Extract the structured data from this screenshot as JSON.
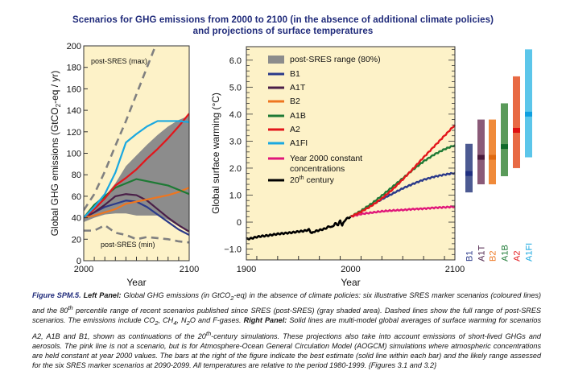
{
  "title_line1": "Scenarios for GHG emissions from 2000 to 2100 (in the absence of additional climate policies)",
  "title_line2": "and projections of surface temperatures",
  "colors": {
    "panel_bg": "#fdf2c8",
    "range_gray": "#8c8c8c",
    "dashed_gray": "#808080",
    "B1": "#2b3a8a",
    "A1T": "#4a1f48",
    "B2": "#ee7620",
    "A1B": "#1e7a35",
    "A2": "#e3161b",
    "A1FI": "#1aa8e0",
    "constant": "#e0177a",
    "century20": "#000000",
    "title": "#1f2a7a"
  },
  "chart_data": [
    {
      "type": "line",
      "title": "Global GHG emissions",
      "xlabel": "Year",
      "ylabel": "Global GHG emissions (GtCO2-eq / yr)",
      "xlim": [
        2000,
        2100
      ],
      "ylim": [
        0,
        200
      ],
      "x_ticks": [
        2000,
        2100
      ],
      "y_ticks": [
        0,
        20,
        40,
        60,
        80,
        100,
        120,
        140,
        160,
        180,
        200
      ],
      "x": [
        2000,
        2010,
        2020,
        2030,
        2040,
        2050,
        2060,
        2070,
        2080,
        2090,
        2100
      ],
      "range_80pct": {
        "name": "post-SRES range (80%)",
        "upper": [
          40,
          50,
          60,
          72,
          88,
          98,
          108,
          117,
          125,
          131,
          135
        ],
        "lower": [
          36,
          40,
          43,
          44,
          44,
          42,
          42,
          42,
          38,
          32,
          26
        ]
      },
      "series": [
        {
          "name": "B1",
          "values": [
            40,
            45,
            50,
            53,
            56,
            55,
            50,
            43,
            36,
            29,
            24
          ]
        },
        {
          "name": "A1T",
          "values": [
            40,
            45,
            52,
            60,
            62,
            61,
            56,
            48,
            40,
            33,
            27
          ]
        },
        {
          "name": "B2",
          "values": [
            40,
            42,
            45,
            48,
            53,
            55,
            57,
            59,
            61,
            64,
            68
          ]
        },
        {
          "name": "A1B",
          "values": [
            40,
            52,
            60,
            68,
            72,
            76,
            74,
            72,
            70,
            66,
            62
          ]
        },
        {
          "name": "A2",
          "values": [
            40,
            48,
            58,
            70,
            77,
            85,
            95,
            104,
            114,
            125,
            137
          ]
        },
        {
          "name": "A1FI",
          "values": [
            40,
            50,
            62,
            82,
            110,
            118,
            125,
            130,
            130,
            130,
            129
          ]
        }
      ],
      "dashed": [
        {
          "name": "post-SRES (max)",
          "x": [
            2000,
            2010,
            2020,
            2030,
            2040,
            2050,
            2060,
            2068
          ],
          "values": [
            47,
            62,
            83,
            107,
            130,
            155,
            180,
            200
          ]
        },
        {
          "name": "post-SRES (min)",
          "x": [
            2000,
            2010,
            2020,
            2030,
            2040,
            2050,
            2060,
            2070,
            2080,
            2090,
            2100
          ],
          "values": [
            28,
            28,
            33,
            26,
            24,
            20,
            22,
            21,
            20,
            18,
            17
          ]
        }
      ],
      "annotations": [
        "post-SRES (max)",
        "post-SRES (min)"
      ]
    },
    {
      "type": "line",
      "title": "Global surface warming",
      "xlabel": "Year",
      "ylabel": "Global surface warming (°C)",
      "xlim": [
        1900,
        2100
      ],
      "ylim": [
        -1.4,
        6.5
      ],
      "x_ticks": [
        1900,
        2000,
        2100
      ],
      "y_ticks": [
        -1.0,
        0,
        1.0,
        2.0,
        3.0,
        4.0,
        5.0,
        6.0
      ],
      "y_tick_labels": [
        "−1.0",
        "0",
        "1.0",
        "2.0",
        "3.0",
        "4.0",
        "5.0",
        "6.0"
      ],
      "series": [
        {
          "name": "20th century",
          "x": [
            1900,
            1905,
            1910,
            1915,
            1920,
            1925,
            1930,
            1935,
            1940,
            1945,
            1950,
            1955,
            1960,
            1963,
            1965,
            1970,
            1975,
            1980,
            1982,
            1985,
            1988,
            1990,
            1992,
            1995,
            2000
          ],
          "values": [
            -0.63,
            -0.6,
            -0.55,
            -0.52,
            -0.5,
            -0.47,
            -0.44,
            -0.42,
            -0.4,
            -0.38,
            -0.35,
            -0.33,
            -0.28,
            -0.42,
            -0.35,
            -0.3,
            -0.25,
            -0.15,
            -0.2,
            -0.05,
            -0.1,
            0.05,
            -0.12,
            0.1,
            0.2
          ]
        },
        {
          "name": "B1",
          "x": [
            2000,
            2010,
            2020,
            2030,
            2040,
            2050,
            2060,
            2070,
            2080,
            2090,
            2100
          ],
          "values": [
            0.2,
            0.4,
            0.62,
            0.85,
            1.05,
            1.25,
            1.42,
            1.57,
            1.68,
            1.76,
            1.82
          ]
        },
        {
          "name": "A1B",
          "x": [
            2000,
            2010,
            2020,
            2030,
            2040,
            2050,
            2060,
            2070,
            2080,
            2090,
            2100
          ],
          "values": [
            0.2,
            0.42,
            0.68,
            0.98,
            1.3,
            1.62,
            1.95,
            2.25,
            2.5,
            2.7,
            2.85
          ]
        },
        {
          "name": "A2",
          "x": [
            2000,
            2010,
            2020,
            2030,
            2040,
            2050,
            2060,
            2070,
            2080,
            2090,
            2100
          ],
          "values": [
            0.2,
            0.38,
            0.6,
            0.88,
            1.2,
            1.58,
            1.98,
            2.4,
            2.8,
            3.2,
            3.6
          ]
        },
        {
          "name": "Year 2000 constant concentrations",
          "x": [
            2000,
            2010,
            2020,
            2030,
            2040,
            2050,
            2060,
            2070,
            2080,
            2090,
            2100
          ],
          "values": [
            0.2,
            0.3,
            0.35,
            0.4,
            0.43,
            0.45,
            0.48,
            0.5,
            0.53,
            0.55,
            0.57
          ]
        }
      ],
      "legend": [
        {
          "label": "post-SRES range (80%)",
          "key": "range_gray",
          "kind": "box"
        },
        {
          "label": "B1",
          "key": "B1"
        },
        {
          "label": "A1T",
          "key": "A1T"
        },
        {
          "label": "B2",
          "key": "B2"
        },
        {
          "label": "A1B",
          "key": "A1B"
        },
        {
          "label": "A2",
          "key": "A2"
        },
        {
          "label": "A1FI",
          "key": "A1FI"
        },
        {
          "label": "Year 2000 constant",
          "label2": "concentrations",
          "key": "constant"
        },
        {
          "label": "20",
          "sup": "th",
          "label_rest": " century",
          "key": "century20"
        }
      ],
      "legend_position": "top-left",
      "bars_2090_2099": [
        {
          "name": "B1",
          "best": 1.8,
          "low": 1.1,
          "high": 2.9
        },
        {
          "name": "A1T",
          "best": 2.4,
          "low": 1.4,
          "high": 3.8
        },
        {
          "name": "B2",
          "best": 2.4,
          "low": 1.4,
          "high": 3.8
        },
        {
          "name": "A1B",
          "best": 2.8,
          "low": 1.7,
          "high": 4.4
        },
        {
          "name": "A2",
          "best": 3.4,
          "low": 2.0,
          "high": 5.4
        },
        {
          "name": "A1FI",
          "best": 4.0,
          "low": 2.4,
          "high": 6.4
        }
      ]
    }
  ],
  "caption": {
    "fig": "Figure SPM.5.",
    "left_label": "Left Panel:",
    "t1": " Global GHG emissions (in GtCO",
    "t1_sub": "2",
    "t2": "-eq) in the absence of climate policies: six illustrative SRES marker scenarios (coloured lines) and the 80",
    "t2_sup": "th",
    "t3": " percentile range of recent scenarios published since SRES (post-SRES) (gray shaded area). Dashed lines show the full range of post-SRES scenarios. The emissions include CO",
    "t3_sub": "2",
    "t4": ", CH",
    "t4_sub": "4",
    "t5": ", N",
    "t5_sub": "2",
    "t6": "O and F-gases. ",
    "right_label": "Right Panel:",
    "t7": " Solid lines are multi-model global averages of surface warming for scenarios A2, A1B and B1, shown as continuations of the 20",
    "t7_sup": "th",
    "t8": "-century simulations. These projections also take into account emissions of short-lived GHGs and aerosols. The pink line is not a scenario, but is for Atmosphere-Ocean General Circulation Model (AOGCM) simulations where atmospheric concentrations are held constant at year 2000 values. The bars at the right of the figure indicate the best estimate (solid line within each bar) and the likely range assessed for the six SRES marker scenarios at 2090-2099. All temperatures are relative to the period 1980-1999. {Figures 3.1 and 3.2}"
  }
}
